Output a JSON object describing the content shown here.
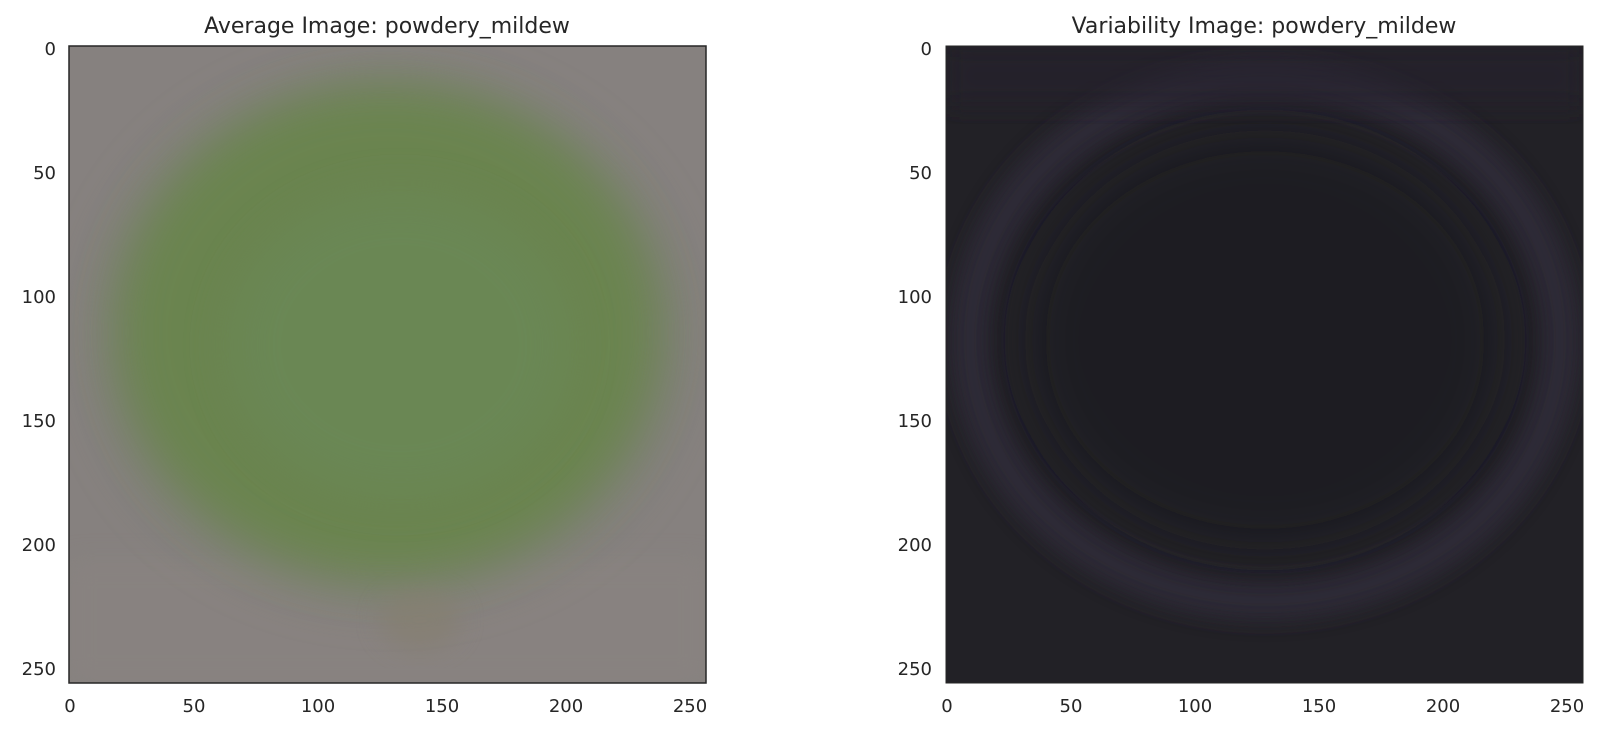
{
  "panels": [
    {
      "title": "Average Image: powdery_mildew",
      "x_ticks": [
        "0",
        "50",
        "100",
        "150",
        "200",
        "250"
      ],
      "y_ticks": [
        "0",
        "50",
        "100",
        "150",
        "200",
        "250"
      ],
      "colors": {
        "background": "#86817f",
        "leaf": "#6b8450",
        "leaf_center": "#6b8856"
      }
    },
    {
      "title": "Variability Image: powdery_mildew",
      "x_ticks": [
        "0",
        "50",
        "100",
        "150",
        "200",
        "250"
      ],
      "y_ticks": [
        "0",
        "50",
        "100",
        "150",
        "200",
        "250"
      ],
      "colors": {
        "background": "#222126",
        "ring": "#2d2b37",
        "center": "#1f1e23"
      }
    }
  ]
}
